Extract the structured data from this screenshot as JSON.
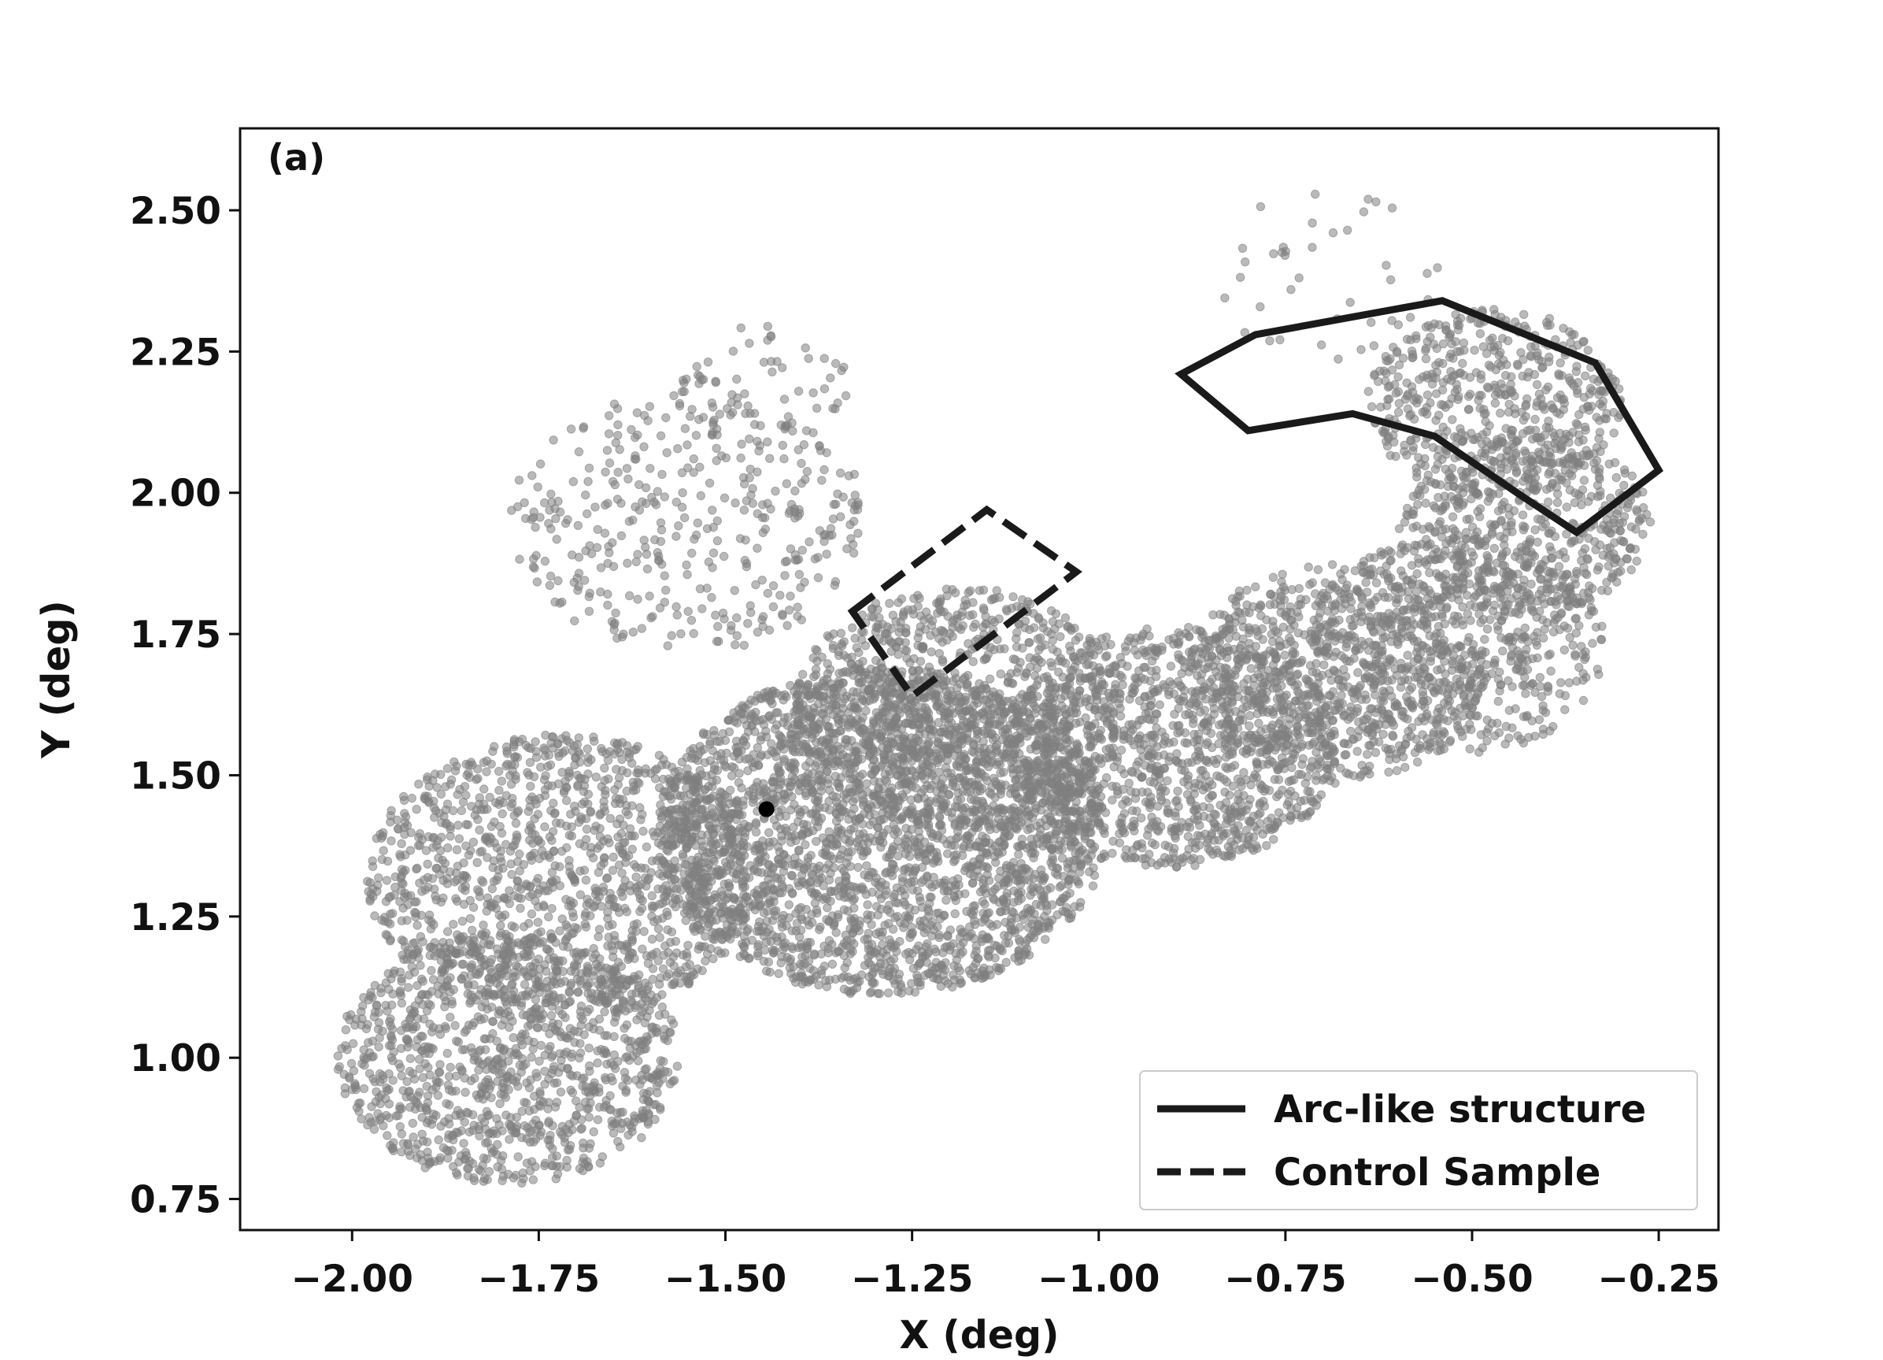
{
  "chart_data": {
    "type": "scatter",
    "panel_label": "(a)",
    "xlabel": "X (deg)",
    "ylabel": "Y (deg)",
    "xlim": [
      -2.15,
      -0.17
    ],
    "ylim": [
      0.695,
      2.645
    ],
    "xticks": [
      -2.0,
      -1.75,
      -1.5,
      -1.25,
      -1.0,
      -0.75,
      -0.5,
      -0.25
    ],
    "xtick_labels": [
      "−2.00",
      "−1.75",
      "−1.50",
      "−1.25",
      "−1.00",
      "−0.75",
      "−0.50",
      "−0.25"
    ],
    "yticks": [
      0.75,
      1.0,
      1.25,
      1.5,
      1.75,
      2.0,
      2.25,
      2.5
    ],
    "ytick_labels": [
      "0.75",
      "1.00",
      "1.25",
      "1.50",
      "1.75",
      "2.00",
      "2.25",
      "2.50"
    ],
    "grid": false,
    "point_color": "#7f7f7f",
    "marker_color": "#000000",
    "outline_color": "#1a1a1a",
    "point_clusters": [
      {
        "cx": -1.79,
        "cy": 1.0,
        "r": 0.23,
        "count": 1100
      },
      {
        "cx": -1.72,
        "cy": 1.32,
        "r": 0.26,
        "count": 1300
      },
      {
        "cx": -1.29,
        "cy": 1.4,
        "r": 0.3,
        "count": 2800
      },
      {
        "cx": -1.19,
        "cy": 1.62,
        "r": 0.22,
        "count": 900
      },
      {
        "cx": -0.9,
        "cy": 1.55,
        "r": 0.22,
        "count": 1200
      },
      {
        "cx": -0.68,
        "cy": 1.68,
        "r": 0.2,
        "count": 700
      },
      {
        "cx": -0.52,
        "cy": 1.73,
        "r": 0.2,
        "count": 650
      },
      {
        "cx": -0.43,
        "cy": 1.95,
        "r": 0.17,
        "count": 550
      },
      {
        "cx": -0.47,
        "cy": 2.16,
        "r": 0.17,
        "count": 500
      },
      {
        "cx": -1.55,
        "cy": 1.95,
        "r": 0.24,
        "count": 380
      },
      {
        "cx": -1.45,
        "cy": 2.18,
        "r": 0.12,
        "count": 60
      },
      {
        "cx": -0.7,
        "cy": 2.38,
        "r": 0.16,
        "count": 40
      }
    ],
    "special_point": {
      "x": -1.445,
      "y": 1.44
    },
    "arc_polygon": [
      [
        -0.89,
        2.21
      ],
      [
        -0.79,
        2.28
      ],
      [
        -0.54,
        2.34
      ],
      [
        -0.335,
        2.23
      ],
      [
        -0.25,
        2.04
      ],
      [
        -0.36,
        1.93
      ],
      [
        -0.44,
        2.0
      ],
      [
        -0.55,
        2.1
      ],
      [
        -0.66,
        2.14
      ],
      [
        -0.8,
        2.11
      ]
    ],
    "control_polygon": [
      [
        -1.33,
        1.79
      ],
      [
        -1.15,
        1.97
      ],
      [
        -1.03,
        1.86
      ],
      [
        -1.25,
        1.64
      ]
    ],
    "legend": {
      "position": "lower right",
      "entries": [
        {
          "label": "Arc-like structure",
          "style": "solid"
        },
        {
          "label": "Control Sample",
          "style": "dashed"
        }
      ]
    }
  }
}
